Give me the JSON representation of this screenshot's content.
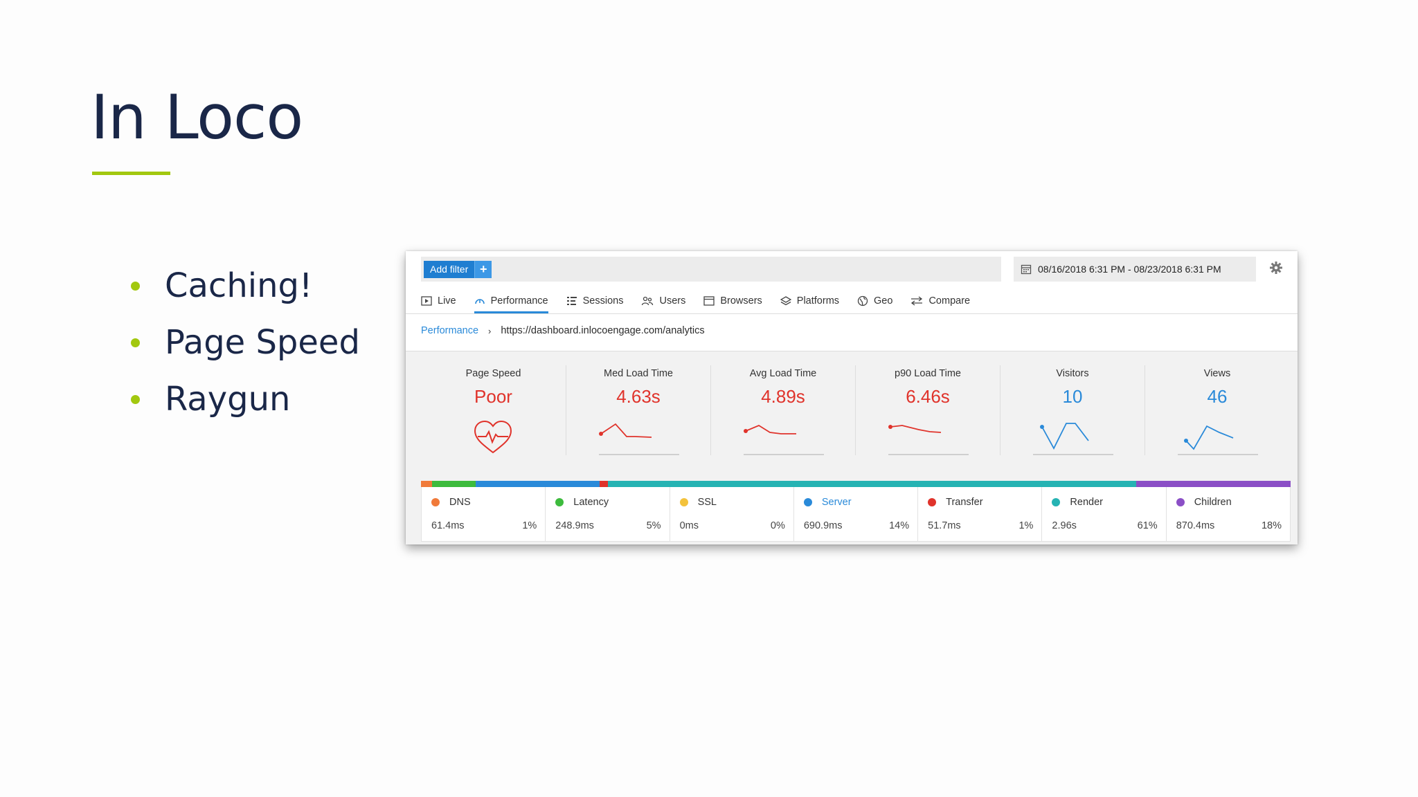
{
  "slide": {
    "title": "In Loco",
    "bullets": [
      "Caching!",
      "Page Speed",
      "Raygun"
    ]
  },
  "dashboard": {
    "add_filter_label": "Add filter",
    "add_filter_plus": "+",
    "date_range": "08/16/2018 6:31 PM - 08/23/2018 6:31 PM",
    "tabs": [
      {
        "label": "Live",
        "icon": "play-icon"
      },
      {
        "label": "Performance",
        "icon": "gauge-icon",
        "active": true
      },
      {
        "label": "Sessions",
        "icon": "sessions-icon"
      },
      {
        "label": "Users",
        "icon": "users-icon"
      },
      {
        "label": "Browsers",
        "icon": "browser-icon"
      },
      {
        "label": "Platforms",
        "icon": "layers-icon"
      },
      {
        "label": "Geo",
        "icon": "globe-icon"
      },
      {
        "label": "Compare",
        "icon": "compare-icon"
      }
    ],
    "breadcrumb": {
      "parent": "Performance",
      "separator": "›",
      "current": "https://dashboard.inlocoengage.com/analytics"
    },
    "metrics": [
      {
        "label": "Page Speed",
        "value": "Poor",
        "color": "#e0332b"
      },
      {
        "label": "Med Load Time",
        "value": "4.63s",
        "color": "#e0332b"
      },
      {
        "label": "Avg Load Time",
        "value": "4.89s",
        "color": "#e0332b"
      },
      {
        "label": "p90 Load Time",
        "value": "6.46s",
        "color": "#e0332b"
      },
      {
        "label": "Visitors",
        "value": "10",
        "color": "#2a8ad9"
      },
      {
        "label": "Views",
        "value": "46",
        "color": "#2a8ad9"
      }
    ],
    "breakdown": [
      {
        "name": "DNS",
        "time": "61.4ms",
        "percent": "1%",
        "color": "#f07a3a"
      },
      {
        "name": "Latency",
        "time": "248.9ms",
        "percent": "5%",
        "color": "#3dbb3d"
      },
      {
        "name": "SSL",
        "time": "0ms",
        "percent": "0%",
        "color": "#f3c23c"
      },
      {
        "name": "Server",
        "time": "690.9ms",
        "percent": "14%",
        "color": "#2a8ad9",
        "active": true
      },
      {
        "name": "Transfer",
        "time": "51.7ms",
        "percent": "1%",
        "color": "#e0332b"
      },
      {
        "name": "Render",
        "time": "2.96s",
        "percent": "61%",
        "color": "#26b3b3"
      },
      {
        "name": "Children",
        "time": "870.4ms",
        "percent": "18%",
        "color": "#8b4fc6"
      }
    ]
  }
}
